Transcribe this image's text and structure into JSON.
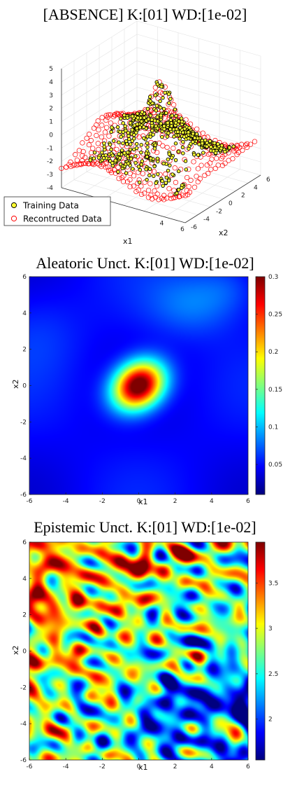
{
  "chart_data": [
    {
      "type": "scatter3d",
      "title": "[ABSENCE] K:[01] WD:[1e-02]",
      "xlabel": "x1",
      "ylabel": "x2",
      "zlabel": "",
      "xlim": [
        -6,
        6
      ],
      "ylim": [
        -6,
        6
      ],
      "zlim": [
        -4,
        5
      ],
      "x_ticks": [
        "-6",
        "-4",
        "-2",
        "0",
        "2",
        "4",
        "6"
      ],
      "y_ticks": [
        "-6",
        "-4",
        "-2",
        "0",
        "2",
        "4",
        "6"
      ],
      "z_ticks": [
        "5",
        "4",
        "3",
        "2",
        "1",
        "0",
        "-1",
        "-2",
        "-3",
        "-4"
      ],
      "x_tick_labels_visible": [
        "4",
        "6"
      ],
      "legend_placement": "bottom-left",
      "grid": true,
      "series": [
        {
          "name": "Training Data",
          "marker": "circle",
          "face_color": "#ffff33",
          "edge_color": "#000000"
        },
        {
          "name": "Recontructed Data",
          "marker": "circle",
          "face_color": "none",
          "edge_color": "#ff0000"
        }
      ]
    },
    {
      "type": "heatmap",
      "title": "Aleatoric Unct. K:[01] WD:[1e-02]",
      "xlabel": "x1",
      "ylabel": "x2",
      "xlim": [
        -6,
        6
      ],
      "ylim": [
        -6,
        6
      ],
      "x_ticks": [
        "-6",
        "-4",
        "-2",
        "0",
        "2",
        "4",
        "6"
      ],
      "y_ticks": [
        "6",
        "4",
        "2",
        "0",
        "-2",
        "-4",
        "-6"
      ],
      "colorbar_ticks": [
        "0.3",
        "0.25",
        "0.2",
        "0.15",
        "0.1",
        "0.05"
      ],
      "colorbar_range": [
        0.01,
        0.3
      ],
      "colormap": "jet",
      "peak": {
        "x1": 0,
        "x2": 0,
        "value": 0.3
      }
    },
    {
      "type": "heatmap",
      "title": "Epistemic Unct. K:[01] WD:[1e-02]",
      "xlabel": "x1",
      "ylabel": "x2",
      "xlim": [
        -6,
        6
      ],
      "ylim": [
        -6,
        6
      ],
      "x_ticks": [
        "-6",
        "-4",
        "-2",
        "0",
        "2",
        "4",
        "6"
      ],
      "y_ticks": [
        "6",
        "4",
        "2",
        "0",
        "-2",
        "-4",
        "-6"
      ],
      "colorbar_ticks": [
        "3.5",
        "3",
        "2.5",
        "2"
      ],
      "colorbar_range": [
        1.55,
        3.95
      ],
      "colormap": "jet"
    }
  ]
}
